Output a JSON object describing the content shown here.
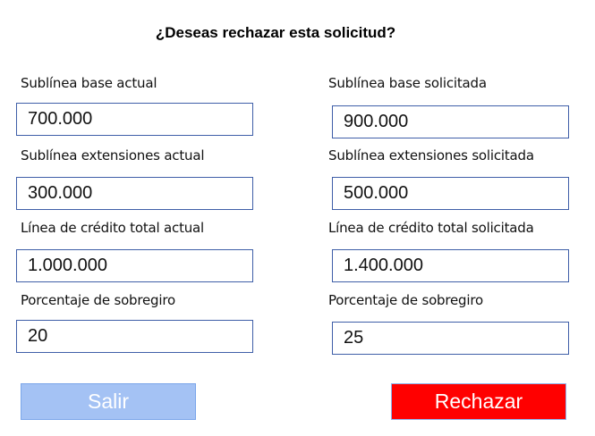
{
  "title": "¿Deseas rechazar esta solicitud?",
  "left": [
    {
      "label": "Sublínea base actual",
      "value": "700.000"
    },
    {
      "label": "Sublínea extensiones actual",
      "value": "300.000"
    },
    {
      "label": "Línea de crédito total actual",
      "value": "1.000.000"
    },
    {
      "label": "Porcentaje de sobregiro",
      "value": "20"
    }
  ],
  "right": [
    {
      "label": "Sublínea base solicitada",
      "value": "900.000"
    },
    {
      "label": "Sublínea extensiones solicitada",
      "value": "500.000"
    },
    {
      "label": "Línea de crédito total solicitada",
      "value": "1.400.000"
    },
    {
      "label": "Porcentaje de sobregiro",
      "value": "25"
    }
  ],
  "buttons": {
    "exit": "Salir",
    "reject": "Rechazar"
  },
  "colors": {
    "exit": "#a4c2f4",
    "reject": "#ff0000",
    "border": "#3f5fa8"
  }
}
